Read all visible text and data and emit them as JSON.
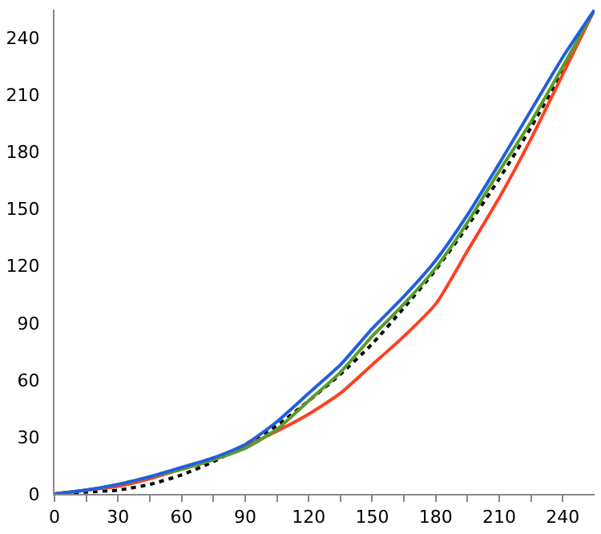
{
  "chart_data": {
    "type": "line",
    "x": [
      0,
      15,
      30,
      45,
      60,
      75,
      90,
      105,
      120,
      135,
      150,
      165,
      180,
      195,
      210,
      225,
      240,
      255
    ],
    "series": [
      {
        "color": "#000000",
        "line_style": "dotted",
        "values": [
          0,
          1,
          2,
          5,
          10,
          17,
          26,
          36,
          49,
          63,
          79,
          98,
          118,
          141,
          166,
          193,
          223,
          255
        ]
      },
      {
        "color": "#ff4020",
        "values": [
          0,
          2,
          4,
          8,
          13,
          18,
          25,
          33,
          42,
          53,
          68,
          83,
          100,
          128,
          156,
          187,
          221,
          255
        ]
      },
      {
        "color": "#5a9a2a",
        "values": [
          0,
          2,
          5,
          9,
          13,
          18,
          24,
          34,
          49,
          64,
          83,
          100,
          119,
          143,
          170,
          196,
          225,
          255
        ]
      },
      {
        "color": "#1f5fe0",
        "values": [
          0,
          2,
          5,
          9,
          14,
          19,
          26,
          38,
          53,
          68,
          87,
          104,
          123,
          147,
          174,
          202,
          230,
          255
        ]
      }
    ],
    "xlim": [
      0,
      255
    ],
    "ylim": [
      0,
      255
    ],
    "xticks": [
      0,
      {
        "value": 15,
        "label": null
      },
      30,
      {
        "value": 45,
        "label": null
      },
      60,
      {
        "value": 75,
        "label": null
      },
      90,
      {
        "value": 105,
        "label": null
      },
      120,
      {
        "value": 135,
        "label": null
      },
      150,
      {
        "value": 165,
        "label": null
      },
      180,
      {
        "value": 195,
        "label": null
      },
      210,
      {
        "value": 225,
        "label": null
      },
      240
    ],
    "yticks": [
      0,
      30,
      60,
      90,
      120,
      150,
      180,
      210,
      240
    ],
    "legend": false,
    "marker": "none",
    "line_style": "solid"
  }
}
